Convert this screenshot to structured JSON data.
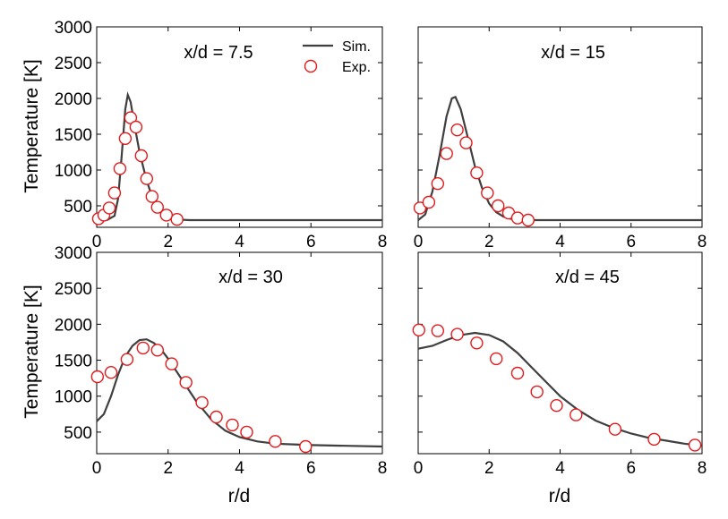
{
  "chart_data": {
    "type": "line",
    "xlabel": "r/d",
    "ylabel": "Temperature [K]",
    "xlim": [
      0,
      8
    ],
    "ylim": [
      200,
      3000
    ],
    "xticks": [
      0,
      2,
      4,
      6,
      8
    ],
    "yticks": [
      500,
      1000,
      1500,
      2000,
      2500,
      3000
    ],
    "colors": {
      "sim": "#3f3f3f",
      "exp": "#e31a1c"
    },
    "legend": {
      "sim_label": "Sim.",
      "exp_label": "Exp.",
      "position": "top-right"
    },
    "panels": [
      {
        "title": "x/d = 7.5",
        "series": [
          {
            "name": "Sim.",
            "type": "line",
            "x": [
              0,
              0.3,
              0.5,
              0.6,
              0.7,
              0.8,
              0.87,
              0.95,
              1.05,
              1.2,
              1.4,
              1.6,
              1.8,
              2.0,
              2.2,
              2.6,
              3,
              4,
              5,
              6,
              7,
              8
            ],
            "y": [
              300,
              305,
              360,
              600,
              1200,
              1850,
              2050,
              1950,
              1650,
              1250,
              850,
              560,
              400,
              330,
              310,
              300,
              300,
              300,
              300,
              300,
              300,
              300
            ]
          },
          {
            "name": "Exp.",
            "type": "scatter",
            "x": [
              0.05,
              0.2,
              0.35,
              0.5,
              0.65,
              0.8,
              0.95,
              1.1,
              1.25,
              1.4,
              1.55,
              1.7,
              1.95,
              2.25
            ],
            "y": [
              320,
              370,
              470,
              680,
              1020,
              1440,
              1730,
              1600,
              1200,
              880,
              630,
              480,
              370,
              310
            ]
          }
        ]
      },
      {
        "title": "x/d = 15",
        "series": [
          {
            "name": "Sim.",
            "type": "line",
            "x": [
              0,
              0.2,
              0.4,
              0.6,
              0.8,
              0.95,
              1.05,
              1.2,
              1.4,
              1.6,
              1.8,
              2.0,
              2.2,
              2.4,
              2.6,
              3,
              4,
              5,
              6,
              7,
              8
            ],
            "y": [
              300,
              380,
              700,
              1200,
              1750,
              2000,
              2020,
              1850,
              1450,
              1050,
              750,
              530,
              410,
              350,
              320,
              300,
              300,
              300,
              300,
              300,
              300
            ]
          },
          {
            "name": "Exp.",
            "type": "scatter",
            "x": [
              0.05,
              0.3,
              0.55,
              0.8,
              1.1,
              1.35,
              1.65,
              1.95,
              2.25,
              2.55,
              2.8,
              3.1
            ],
            "y": [
              470,
              550,
              810,
              1230,
              1560,
              1380,
              960,
              680,
              500,
              400,
              330,
              300
            ]
          }
        ]
      },
      {
        "title": "x/d = 30",
        "series": [
          {
            "name": "Sim.",
            "type": "line",
            "x": [
              0,
              0.2,
              0.4,
              0.6,
              0.8,
              1.0,
              1.2,
              1.4,
              1.6,
              1.8,
              2.0,
              2.4,
              2.8,
              3.2,
              3.6,
              4.0,
              4.5,
              5.0,
              5.5,
              6.0,
              7.0,
              8.0
            ],
            "y": [
              650,
              750,
              1000,
              1300,
              1550,
              1700,
              1780,
              1790,
              1740,
              1650,
              1520,
              1220,
              920,
              680,
              520,
              430,
              370,
              340,
              330,
              320,
              310,
              300
            ]
          },
          {
            "name": "Exp.",
            "type": "scatter",
            "x": [
              0.02,
              0.4,
              0.85,
              1.3,
              1.7,
              2.1,
              2.5,
              2.95,
              3.35,
              3.8,
              4.2,
              5.0,
              5.85
            ],
            "y": [
              1270,
              1330,
              1510,
              1670,
              1640,
              1450,
              1190,
              910,
              710,
              600,
              500,
              370,
              300
            ]
          }
        ]
      },
      {
        "title": "x/d = 45",
        "series": [
          {
            "name": "Sim.",
            "type": "line",
            "x": [
              0,
              0.4,
              0.8,
              1.2,
              1.6,
              2.0,
              2.4,
              2.8,
              3.2,
              3.6,
              4.0,
              4.5,
              5.0,
              5.5,
              6.0,
              6.5,
              7.0,
              7.5,
              8.0
            ],
            "y": [
              1660,
              1700,
              1780,
              1850,
              1880,
              1850,
              1760,
              1600,
              1400,
              1200,
              1000,
              810,
              660,
              560,
              480,
              420,
              380,
              340,
              310
            ]
          },
          {
            "name": "Exp.",
            "type": "scatter",
            "x": [
              0.02,
              0.55,
              1.1,
              1.65,
              2.2,
              2.8,
              3.35,
              3.9,
              4.45,
              5.55,
              6.65,
              7.8
            ],
            "y": [
              1920,
              1910,
              1860,
              1740,
              1520,
              1320,
              1060,
              870,
              740,
              540,
              400,
              320
            ]
          }
        ]
      }
    ]
  }
}
